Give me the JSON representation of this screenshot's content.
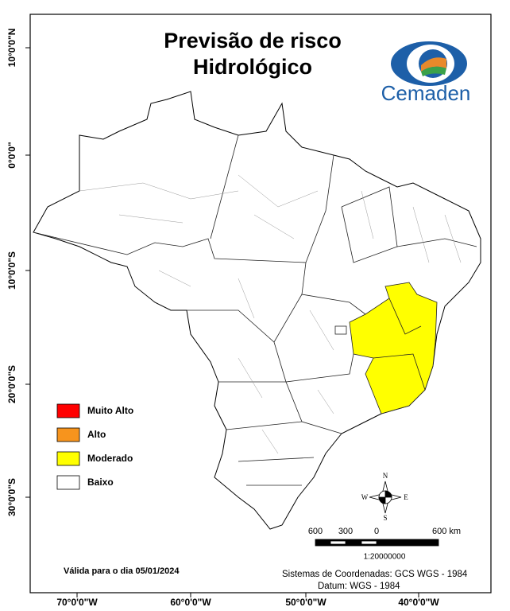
{
  "header": {
    "title_lines": [
      "Previsão de risco",
      "Hidrológico"
    ],
    "logo": "Cemaden"
  },
  "latitude_labels": [
    "10°0'0\"N",
    "0°0'0\"",
    "10°0'0\"S",
    "20°0'0\"S",
    "30°0'0\"S"
  ],
  "longitude_labels": [
    "70°0'0\"W",
    "60°0'0\"W",
    "50°0'0\"W",
    "40°0'0\"W"
  ],
  "legend": [
    {
      "label": "Muito Alto",
      "color": "#ff0000"
    },
    {
      "label": "Alto",
      "color": "#f7941d"
    },
    {
      "label": "Moderado",
      "color": "#ffff00"
    },
    {
      "label": "Baixo",
      "color": "#ffffff"
    }
  ],
  "compass": [
    "N",
    "S",
    "E",
    "W"
  ],
  "scale": {
    "labels": [
      "600",
      "300",
      "0",
      "600 km"
    ],
    "ratio": "1:20000000"
  },
  "footer": {
    "validity": "Válida para o dia 05/01/2024",
    "coordinates": "Sistemas de Coordenadas: GCS WGS - 1984",
    "datum": "Datum: WGS - 1984"
  }
}
